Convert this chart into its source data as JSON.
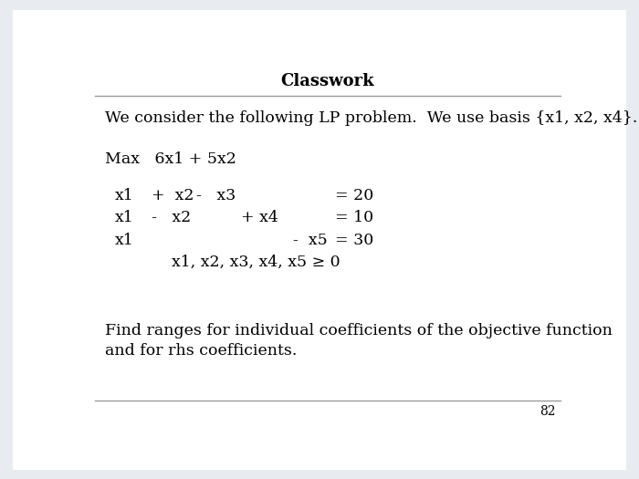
{
  "title": "Classwork",
  "background_color": "#e8ecf0",
  "slide_background": "#ffffff",
  "title_fontsize": 13,
  "body_fontsize": 12.5,
  "page_number": "82",
  "line1": "We consider the following LP problem.  We use basis {x1, x2, x4}.",
  "line2": "Max   6x1 + 5x2",
  "nonnegativity": "x1, x2, x3, x4, x5 ≥ 0",
  "footer1": "Find ranges for individual coefficients of the objective function",
  "footer2": "and for rhs coefficients."
}
